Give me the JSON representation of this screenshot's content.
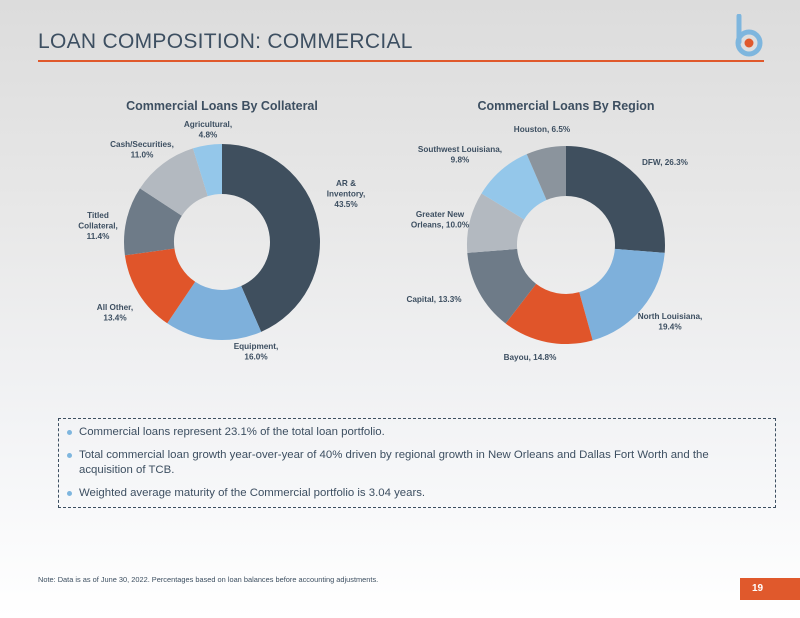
{
  "header": {
    "title": "LOAN COMPOSITION: COMMERCIAL"
  },
  "colors": {
    "accent": "#e0592c",
    "text": "#3d4f61",
    "bullet": "#7eb6de"
  },
  "chart_data": [
    {
      "type": "pie",
      "title": "Commercial Loans By Collateral",
      "slices": [
        {
          "label": [
            "AR &",
            "Inventory,",
            "43.5%"
          ],
          "value": 43.5,
          "color": "#3f4f5e"
        },
        {
          "label": [
            "Equipment,",
            "16.0%"
          ],
          "value": 16.0,
          "color": "#7eb0db"
        },
        {
          "label": [
            "All Other,",
            "13.4%"
          ],
          "value": 13.4,
          "color": "#e0552a"
        },
        {
          "label": [
            "Titled",
            "Collateral,",
            "11.4%"
          ],
          "value": 11.4,
          "color": "#6e7b88"
        },
        {
          "label": [
            "Cash/Securities,",
            "11.0%"
          ],
          "value": 11.0,
          "color": "#b3b9c0"
        },
        {
          "label": [
            "Agricultural,",
            "4.8%"
          ],
          "value": 4.8,
          "color": "#94c7ea"
        }
      ]
    },
    {
      "type": "pie",
      "title": "Commercial Loans By Region",
      "slices": [
        {
          "label": [
            "DFW, 26.3%"
          ],
          "value": 26.3,
          "color": "#3f4f5e"
        },
        {
          "label": [
            "North Louisiana,",
            "19.4%"
          ],
          "value": 19.4,
          "color": "#7eb0db"
        },
        {
          "label": [
            "Bayou, 14.8%"
          ],
          "value": 14.8,
          "color": "#e0552a"
        },
        {
          "label": [
            "Capital, 13.3%"
          ],
          "value": 13.3,
          "color": "#6e7b88"
        },
        {
          "label": [
            "Greater New",
            "Orleans, 10.0%"
          ],
          "value": 10.0,
          "color": "#b3b9c0"
        },
        {
          "label": [
            "Southwest Louisiana,",
            "9.8%"
          ],
          "value": 9.8,
          "color": "#94c7ea"
        },
        {
          "label": [
            "Houston, 6.5%"
          ],
          "value": 6.5,
          "color": "#8b949d"
        }
      ]
    }
  ],
  "bullets": [
    "Commercial loans represent 23.1% of the total loan portfolio.",
    "Total commercial loan growth year-over-year of 40% driven by regional growth in New Orleans and Dallas Fort Worth and the acquisition of TCB.",
    "Weighted average maturity of the Commercial portfolio is 3.04 years."
  ],
  "footer": {
    "note": "Note: Data is as of June 30, 2022. Percentages based on loan balances before accounting adjustments.",
    "page_number": "19"
  }
}
